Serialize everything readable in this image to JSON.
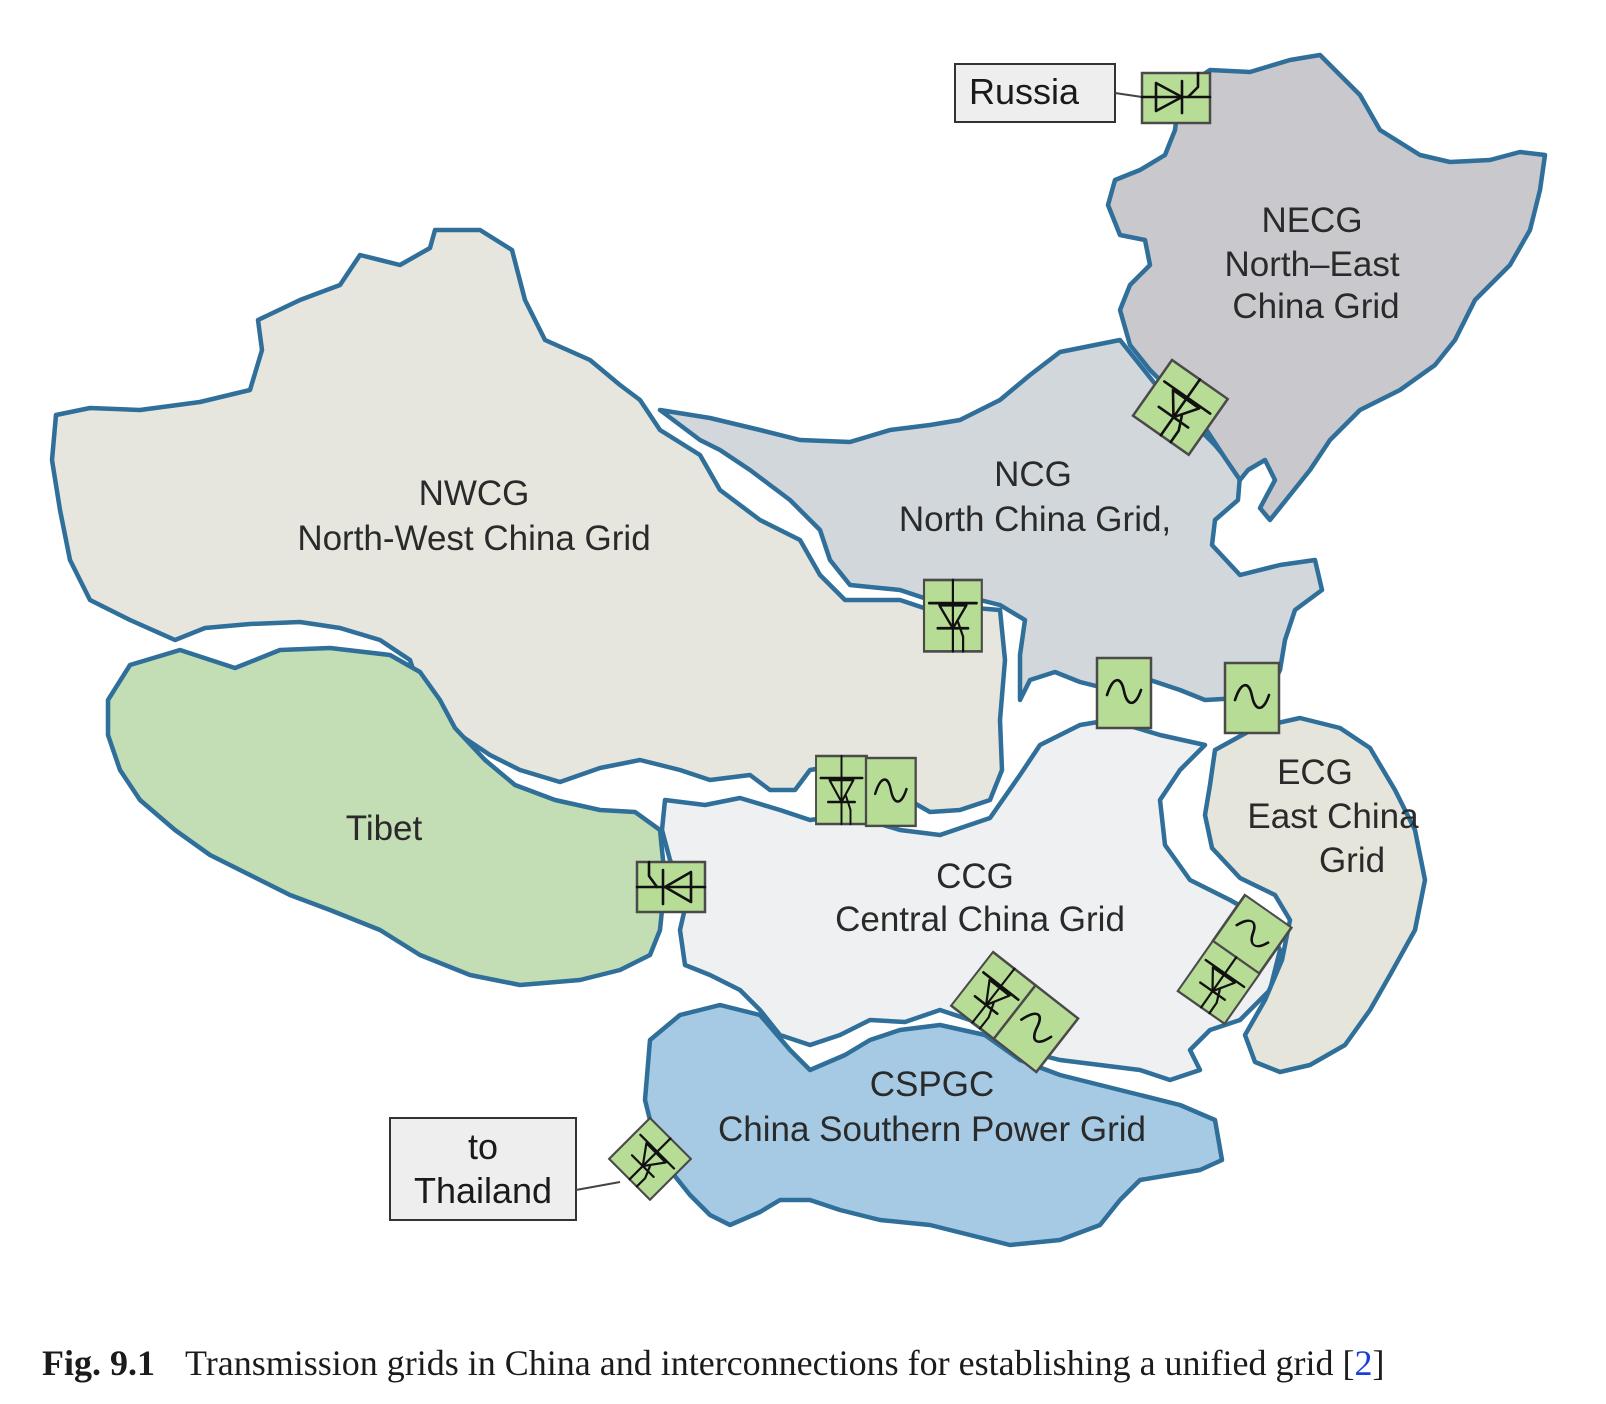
{
  "regions": {
    "necg": {
      "abbr": "NECG",
      "name_line1": "North–East",
      "name_line2": "China Grid",
      "color": "#c9c8cc"
    },
    "ncg": {
      "abbr": "NCG",
      "name": "North China Grid,",
      "color": "#d2d7db"
    },
    "nwcg": {
      "abbr": "NWCG",
      "name": "North-West China Grid",
      "color": "#e6e6de"
    },
    "tibet": {
      "name": "Tibet",
      "color": "#c3ddb4"
    },
    "ccg": {
      "abbr": "CCG",
      "name": "Central China Grid",
      "color": "#eff0f1"
    },
    "ecg": {
      "abbr": "ECG",
      "name_line1": "East China",
      "name_line2": "Grid",
      "color": "#e6e5dc"
    },
    "cspgc": {
      "abbr": "CSPGC",
      "name": "China Southern Power Grid",
      "color": "#a6cae3"
    }
  },
  "external": {
    "russia": "Russia",
    "thailand_line1": "to",
    "thailand_line2": "Thailand"
  },
  "converter_types": [
    "hvdc-converter",
    "ac-link"
  ],
  "caption": {
    "figure": "Fig. 9.1",
    "text": "Transmission grids in China and interconnections for establishing a unified grid [",
    "ref": "2",
    "close": "]"
  },
  "colors": {
    "border": "#2f6f9a",
    "converter_fill": "#b7dc95"
  }
}
